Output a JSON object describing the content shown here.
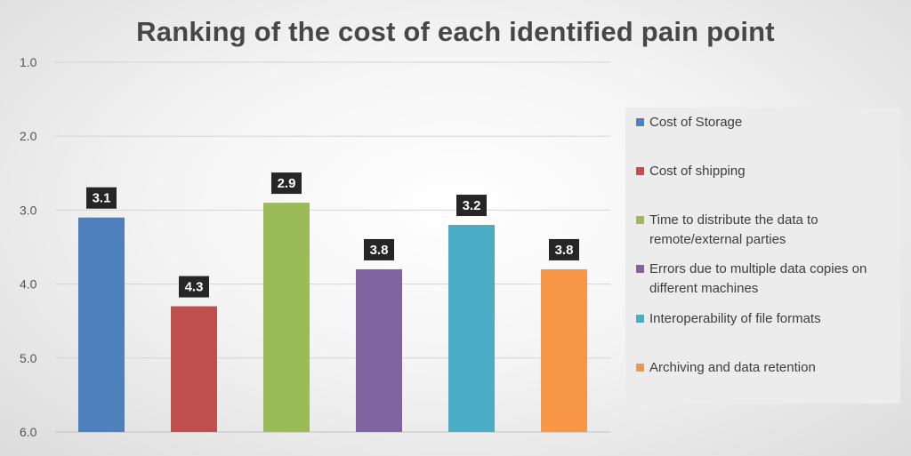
{
  "chart_data": {
    "type": "bar",
    "title": "Ranking of the cost of each identified pain point",
    "categories": [
      "Cost of Storage",
      "Cost of shipping",
      "Time to distribute the data to remote/external parties",
      "Errors due to multiple data copies on different machines",
      "Interoperability of file formats",
      "Archiving and data retention"
    ],
    "values": [
      3.1,
      4.3,
      2.9,
      3.8,
      3.2,
      3.8
    ],
    "data_labels": [
      "3.1",
      "4.3",
      "2.9",
      "3.8",
      "3.2",
      "3.8"
    ],
    "colors": [
      "#4e80bd",
      "#c0504d",
      "#9bbb59",
      "#8064a2",
      "#4bacc6",
      "#f79646"
    ],
    "yaxis": {
      "ticks": [
        "1.0",
        "2.0",
        "3.0",
        "4.0",
        "5.0",
        "6.0"
      ],
      "ylim": [
        1,
        6
      ],
      "reversed": true
    },
    "grid": true,
    "legend_placement": "right",
    "xlabel": "",
    "ylabel": ""
  }
}
